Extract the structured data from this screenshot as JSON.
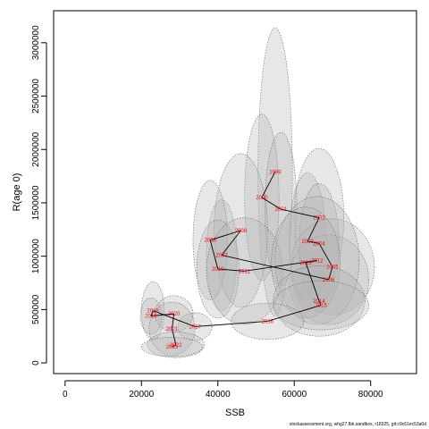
{
  "chart_data": {
    "type": "scatter",
    "title": "",
    "xlabel": "SSB",
    "ylabel": "R(age 0)",
    "xlim": [
      -3000,
      92000
    ],
    "ylim": [
      -100000,
      3300000
    ],
    "x_ticks": [
      0,
      20000,
      40000,
      60000,
      80000
    ],
    "x_tick_labels": [
      "0",
      "20000",
      "40000",
      "60000",
      "80000"
    ],
    "y_ticks": [
      0,
      500000,
      1000000,
      1500000,
      2000000,
      2500000,
      3000000
    ],
    "y_tick_labels": [
      "0",
      "500000",
      "1000000",
      "1500000",
      "2000000",
      "2500000",
      "3000000"
    ],
    "grid": false,
    "legend": "none",
    "colors": {
      "ellipse_fill": "#b4b4b4",
      "ellipse_stroke": "#6a6a6a",
      "trajectory": "#000000",
      "year_label": "#ff0000",
      "axis": "#000000"
    },
    "series": [
      {
        "years": [
          "1999",
          "2000",
          "2001",
          "2002",
          "2003",
          "2004",
          "2005",
          "2006",
          "2007",
          "2008",
          "2009",
          "2010",
          "2011",
          "2012",
          "2013",
          "2014",
          "2015",
          "2016",
          "2017",
          "2018",
          "2019",
          "2020",
          "2021",
          "2022",
          "2023"
        ],
        "x": [
          55000,
          51500,
          56500,
          66500,
          63500,
          66500,
          70000,
          69000,
          41000,
          46000,
          38000,
          40000,
          47000,
          66000,
          63000,
          66500,
          67000,
          53000,
          34000,
          23000,
          22500,
          28500,
          28000,
          29000,
          28000
        ],
        "y": [
          1790000,
          1550000,
          1440000,
          1360000,
          1140000,
          1120000,
          900000,
          780000,
          1010000,
          1240000,
          1150000,
          880000,
          860000,
          960000,
          940000,
          580000,
          540000,
          390000,
          340000,
          490000,
          440000,
          460000,
          320000,
          170000,
          150000
        ],
        "ellipse_rx": [
          4500,
          4500,
          4200,
          6500,
          4800,
          5200,
          11000,
          10500,
          4000,
          7000,
          4500,
          5500,
          10000,
          11000,
          9000,
          12000,
          12500,
          9500,
          4500,
          3000,
          2800,
          5000,
          6000,
          7500,
          8000
        ],
        "ellipse_ry": [
          1350000,
          780000,
          720000,
          650000,
          640000,
          560000,
          450000,
          420000,
          520000,
          720000,
          560000,
          460000,
          500000,
          600000,
          520000,
          330000,
          230000,
          170000,
          130000,
          270000,
          170000,
          170000,
          250000,
          120000,
          90000
        ]
      }
    ]
  },
  "footer": {
    "credit": "stockassessment.org, whg27.fbk.sandbox, r18325, git:c9c61ec53a0d"
  }
}
